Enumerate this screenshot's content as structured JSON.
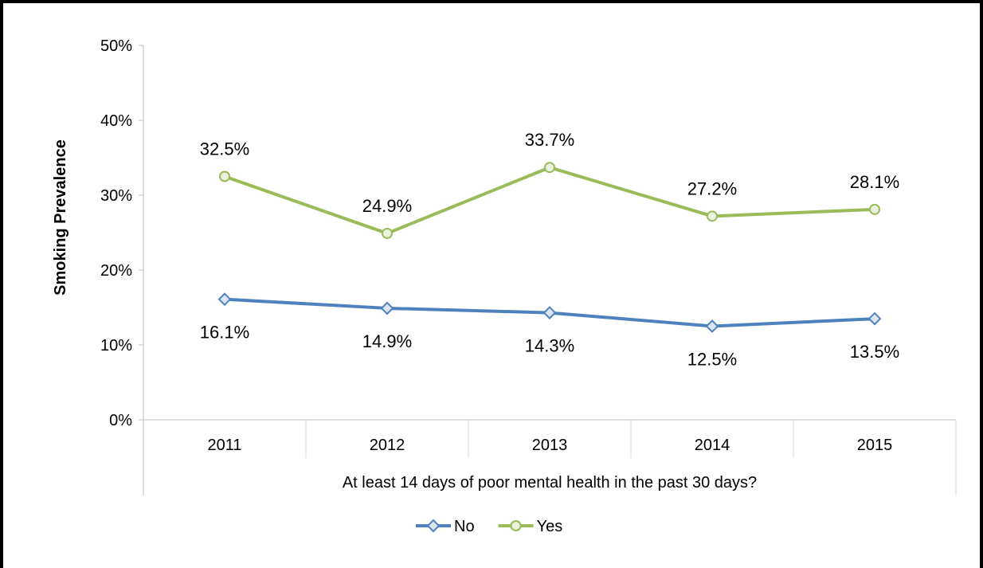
{
  "chart_data": {
    "type": "line",
    "categories": [
      "2011",
      "2012",
      "2013",
      "2014",
      "2015"
    ],
    "xlabel": "At least 14 days of poor mental health in the past 30 days?",
    "ylabel": "Smoking Prevalence",
    "ylim": [
      0,
      50
    ],
    "yticks": [
      0,
      10,
      20,
      30,
      40,
      50
    ],
    "ytick_labels": [
      "0%",
      "10%",
      "20%",
      "30%",
      "40%",
      "50%"
    ],
    "grid": false,
    "legend_position": "bottom",
    "series": [
      {
        "name": "No",
        "color": "#4F81BD",
        "marker": "diamond",
        "values": [
          16.1,
          14.9,
          14.3,
          12.5,
          13.5
        ],
        "labels": [
          "16.1%",
          "14.9%",
          "14.3%",
          "12.5%",
          "13.5%"
        ],
        "label_position": "below"
      },
      {
        "name": "Yes",
        "color": "#9BBB59",
        "marker": "circle",
        "values": [
          32.5,
          24.9,
          33.7,
          27.2,
          28.1
        ],
        "labels": [
          "32.5%",
          "24.9%",
          "33.7%",
          "27.2%",
          "28.1%"
        ],
        "label_position": "above"
      }
    ]
  }
}
